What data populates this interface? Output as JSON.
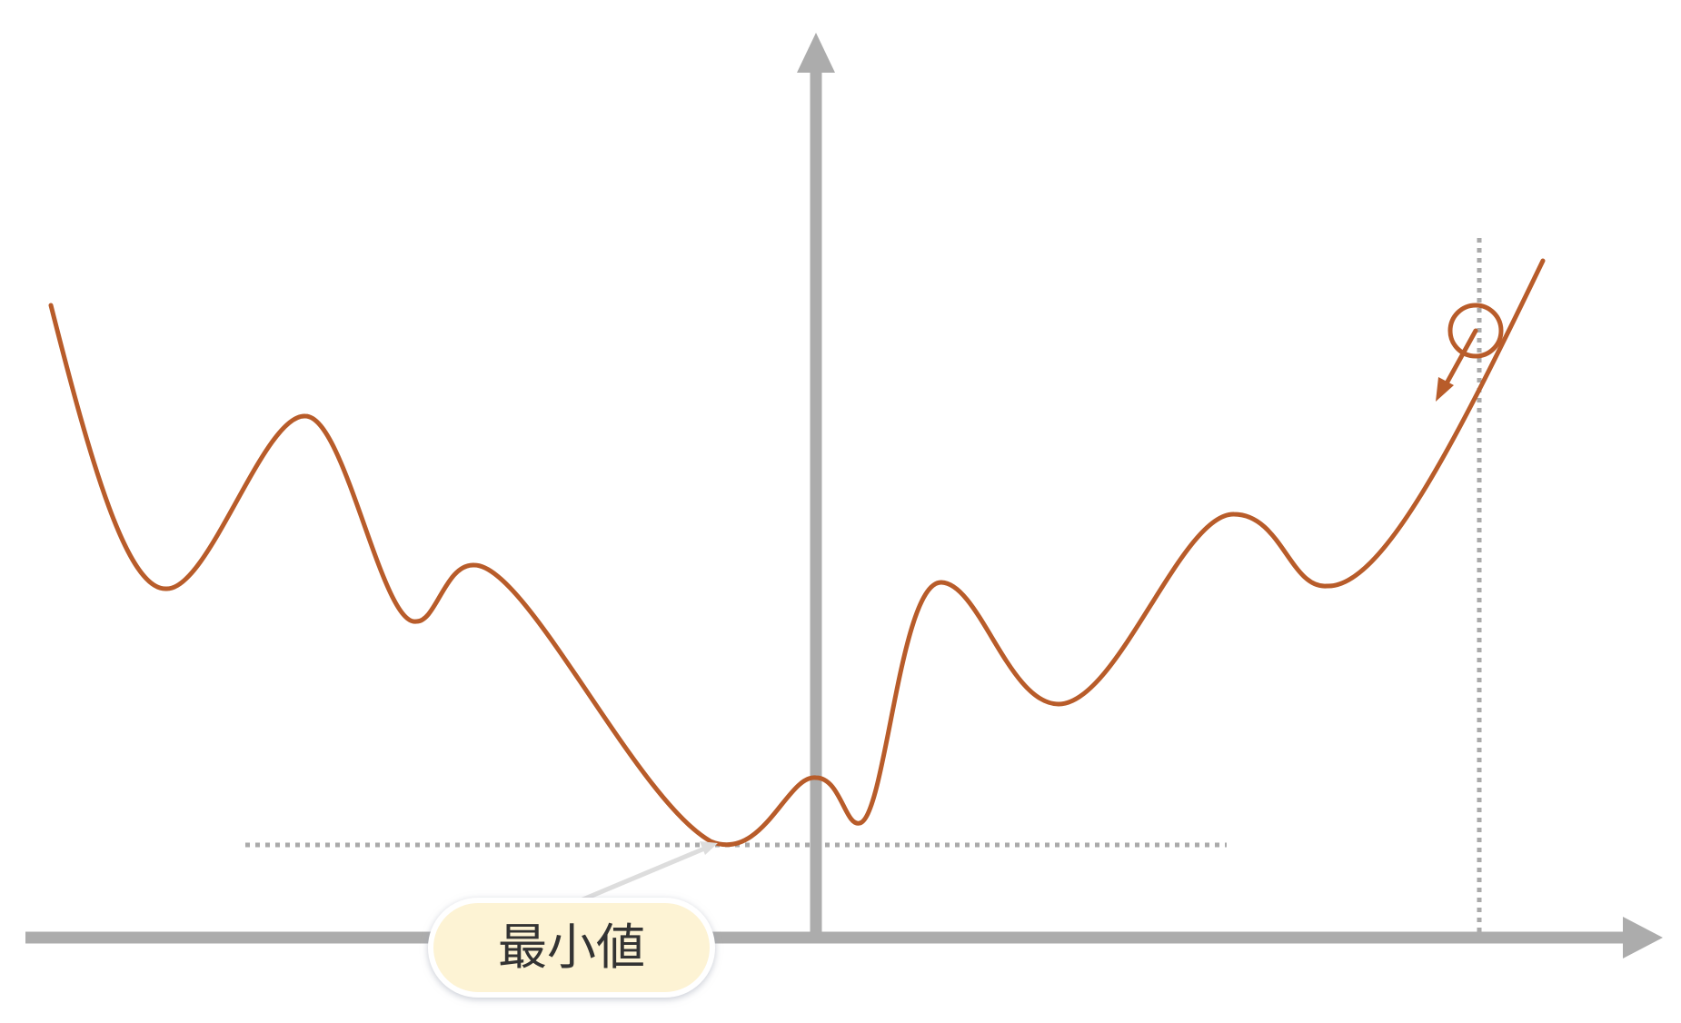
{
  "diagram": {
    "min_label": "最小値"
  },
  "colors": {
    "curve": "#b85c2a",
    "axis": "#acacac",
    "guide": "#aaaaaa",
    "label_fill": "#fdf3d4",
    "label_stroke": "#ffffff",
    "label_shadow": "#c8ccd6",
    "pointer": "#dddddd"
  },
  "icons": {
    "y_axis_head": "arrow-up-icon",
    "x_axis_head": "arrow-right-icon",
    "step": "arrow-down-left-icon"
  }
}
